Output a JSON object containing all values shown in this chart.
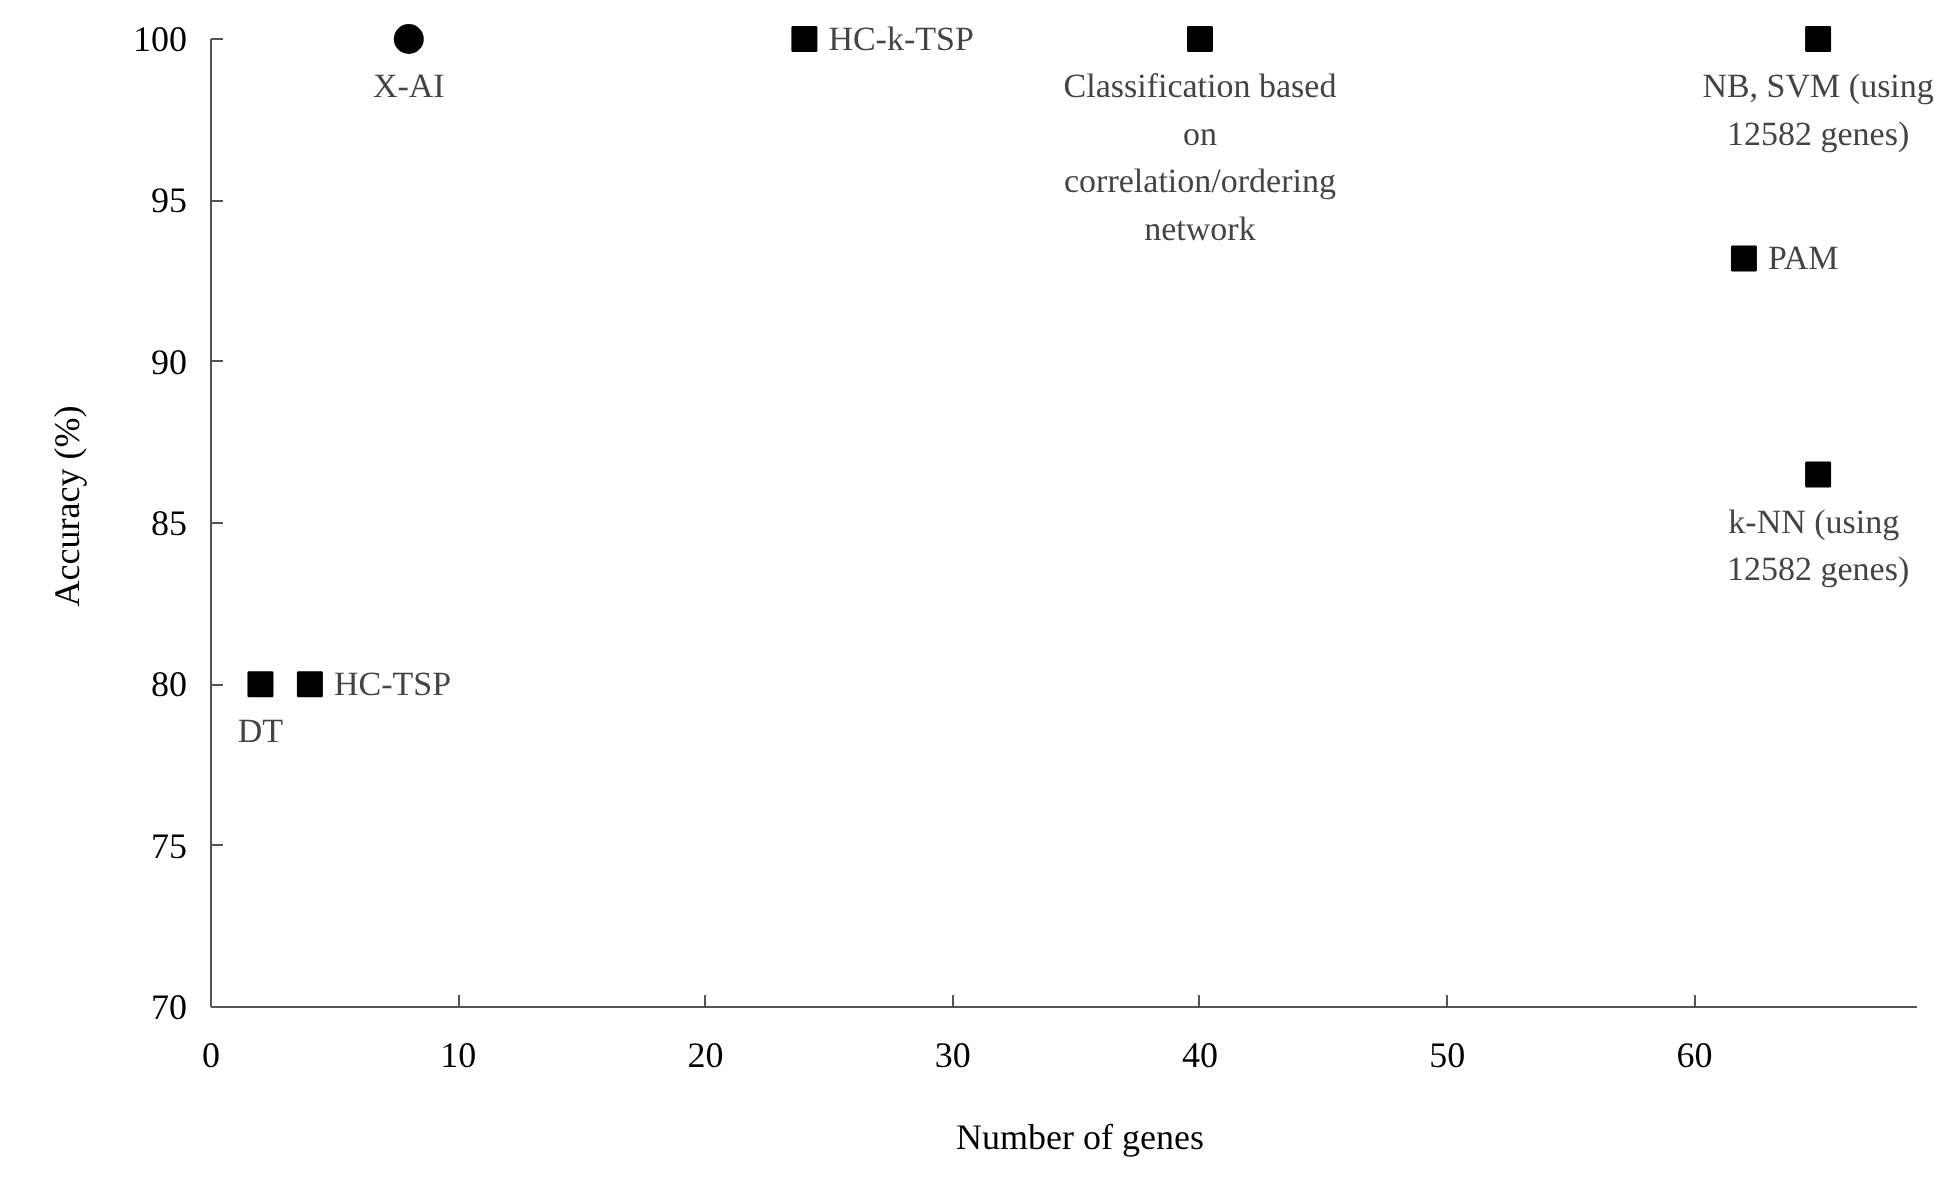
{
  "chart_data": {
    "type": "scatter",
    "xlabel": "Number of genes",
    "ylabel": "Accuracy (%)",
    "xlim": [
      0,
      69
    ],
    "ylim": [
      70,
      100
    ],
    "xticks": [
      0,
      10,
      20,
      30,
      40,
      50,
      60
    ],
    "yticks": [
      70,
      75,
      80,
      85,
      90,
      95,
      100
    ],
    "grid": false,
    "series": [
      {
        "color": "#000000",
        "marker": "circle",
        "x": [
          8
        ],
        "values": [
          100
        ]
      },
      {
        "color": "#000000",
        "marker": "square",
        "x": [
          24,
          40,
          65,
          62,
          65,
          2,
          4
        ],
        "values": [
          100,
          100,
          100,
          93.2,
          86.5,
          80,
          80
        ]
      }
    ],
    "annotations": [
      {
        "text": "X-AI",
        "x": 8,
        "y": 100
      },
      {
        "text": "HC-k-TSP",
        "x": 24,
        "y": 100
      },
      {
        "text": "Classification based\non\ncorrelation/ordering\nnetwork",
        "x": 40,
        "y": 100
      },
      {
        "text": "NB, SVM (using\n12582 genes)",
        "x": 65,
        "y": 100
      },
      {
        "text": "PAM",
        "x": 62,
        "y": 93.2
      },
      {
        "text": "k-NN  (using\n12582 genes)",
        "x": 65,
        "y": 86.5
      },
      {
        "text": "HC-TSP",
        "x": 4,
        "y": 80
      },
      {
        "text": "DT",
        "x": 2,
        "y": 80
      }
    ]
  }
}
